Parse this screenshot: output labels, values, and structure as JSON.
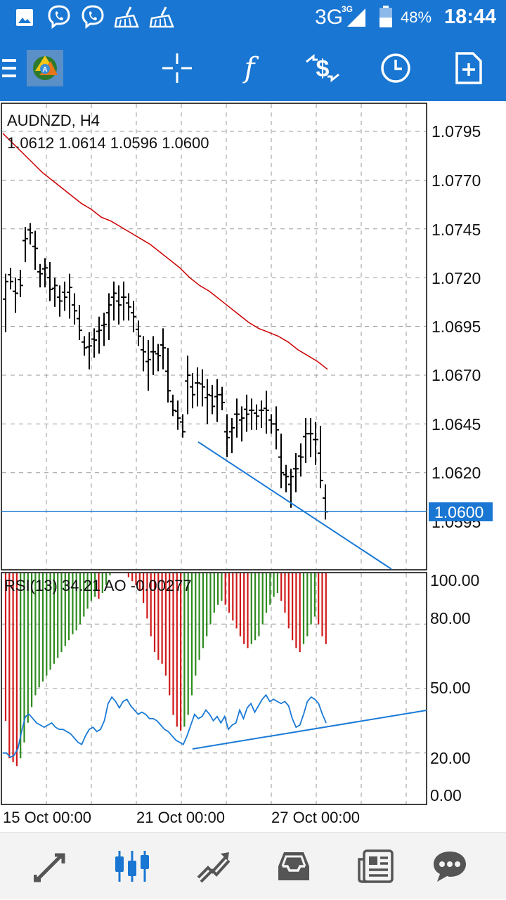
{
  "status_bar": {
    "network": "3G",
    "network_sup": "3G",
    "battery": "48%",
    "time": "18:44",
    "icons": [
      "image-icon",
      "viber-icon",
      "viber-icon",
      "broom-icon",
      "broom-icon",
      "signal-icon",
      "battery-icon"
    ]
  },
  "toolbar": {
    "icons": [
      "menu-icon",
      "metatrader-logo-icon",
      "crosshair-icon",
      "indicator-f-icon",
      "symbol-change-icon",
      "timeframe-clock-icon",
      "new-document-icon"
    ]
  },
  "chart": {
    "symbol_label": "AUDNZD, H4",
    "ohlc": "1.0612 1.0614 1.0596 1.0600",
    "price_axis": [
      "1.0795",
      "1.0770",
      "1.0745",
      "1.0720",
      "1.0695",
      "1.0670",
      "1.0645",
      "1.0620",
      "1.0595"
    ],
    "current_price": "1.0600",
    "indicator_label": "RSI(13) 34.21 AO -0.00277",
    "rsi_axis": [
      "100.00",
      "80.00",
      "50.00",
      "20.00",
      "0.00"
    ],
    "time_axis": [
      "15 Oct 00:00",
      "21 Oct 00:00",
      "27 Oct 00:00"
    ],
    "colors": {
      "toolbar": "#1976d2",
      "candles": "#000000",
      "moving_average": "#cc0000",
      "trendline": "#1a7ad6",
      "ao_up": "#2e8b1e",
      "ao_down": "#d01818",
      "price_tag": "#1976d2"
    }
  },
  "bottom_nav": {
    "icons": [
      "quotes-icon",
      "chart-icon",
      "trade-icon",
      "history-icon",
      "news-icon",
      "chat-icon"
    ],
    "active": "chart-icon"
  },
  "chart_data": {
    "type": "bar",
    "title": "AUDNZD, H4",
    "ylim": [
      1.0576,
      1.081
    ],
    "series": [
      {
        "name": "Price (HLC bars)",
        "values": [
          [
            1.0722,
            1.0692,
            1.0718
          ],
          [
            1.0725,
            1.0714,
            1.0718
          ],
          [
            1.072,
            1.0702,
            1.0712
          ],
          [
            1.0724,
            1.071,
            1.0716
          ],
          [
            1.0746,
            1.0728,
            1.074
          ],
          [
            1.0748,
            1.0737,
            1.0743
          ],
          [
            1.0744,
            1.0724,
            1.0735
          ],
          [
            1.0727,
            1.0715,
            1.0722
          ],
          [
            1.073,
            1.0715,
            1.0725
          ],
          [
            1.0728,
            1.0708,
            1.0714
          ],
          [
            1.072,
            1.0705,
            1.0716
          ],
          [
            1.0716,
            1.07,
            1.0708
          ],
          [
            1.0718,
            1.0703,
            1.071
          ],
          [
            1.0722,
            1.0699,
            1.0715
          ],
          [
            1.0712,
            1.0696,
            1.0703
          ],
          [
            1.0706,
            1.0688,
            1.0693
          ],
          [
            1.069,
            1.068,
            1.0684
          ],
          [
            1.0692,
            1.0673,
            1.0685
          ],
          [
            1.0694,
            1.0679,
            1.0688
          ],
          [
            1.07,
            1.0681,
            1.0693
          ],
          [
            1.0702,
            1.0685,
            1.0696
          ],
          [
            1.0712,
            1.0688,
            1.0706
          ],
          [
            1.0718,
            1.0698,
            1.0712
          ],
          [
            1.0716,
            1.0696,
            1.0706
          ],
          [
            1.0718,
            1.0698,
            1.071
          ],
          [
            1.0712,
            1.0698,
            1.0705
          ],
          [
            1.0708,
            1.0692,
            1.07
          ],
          [
            1.0698,
            1.0685,
            1.069
          ],
          [
            1.069,
            1.0672,
            1.0682
          ],
          [
            1.0688,
            1.0662,
            1.0678
          ],
          [
            1.069,
            1.067,
            1.0682
          ],
          [
            1.0686,
            1.0672,
            1.068
          ],
          [
            1.0694,
            1.0673,
            1.0684
          ],
          [
            1.0684,
            1.0656,
            1.0662
          ],
          [
            1.066,
            1.0649,
            1.0652
          ],
          [
            1.0657,
            1.0642,
            1.0648
          ],
          [
            1.065,
            1.0638,
            1.0641
          ],
          [
            1.068,
            1.065,
            1.067
          ],
          [
            1.0671,
            1.0653,
            1.066
          ],
          [
            1.0674,
            1.0654,
            1.0666
          ],
          [
            1.0673,
            1.0654,
            1.0664
          ],
          [
            1.0668,
            1.0645,
            1.066
          ],
          [
            1.0665,
            1.065,
            1.0654
          ],
          [
            1.0668,
            1.0646,
            1.066
          ],
          [
            1.0664,
            1.0652,
            1.0656
          ],
          [
            1.065,
            1.0628,
            1.0638
          ],
          [
            1.0648,
            1.063,
            1.0643
          ],
          [
            1.0658,
            1.0638,
            1.065
          ],
          [
            1.0654,
            1.0636,
            1.0648
          ],
          [
            1.066,
            1.0641,
            1.065
          ],
          [
            1.0658,
            1.0642,
            1.0652
          ],
          [
            1.0655,
            1.0642,
            1.0649
          ],
          [
            1.0657,
            1.0643,
            1.0652
          ],
          [
            1.0662,
            1.064,
            1.0652
          ],
          [
            1.065,
            1.064,
            1.0645
          ],
          [
            1.0654,
            1.0632,
            1.0642
          ],
          [
            1.064,
            1.0612,
            1.062
          ],
          [
            1.0624,
            1.061,
            1.0618
          ],
          [
            1.0622,
            1.0602,
            1.0618
          ],
          [
            1.063,
            1.061,
            1.0622
          ],
          [
            1.0635,
            1.0618,
            1.0628
          ],
          [
            1.0648,
            1.0625,
            1.064
          ],
          [
            1.0648,
            1.0628,
            1.064
          ],
          [
            1.0646,
            1.0624,
            1.0637
          ],
          [
            1.0644,
            1.0612,
            1.0616
          ],
          [
            1.0614,
            1.0596,
            1.06
          ]
        ]
      },
      {
        "name": "Moving Average",
        "values": [
          1.0794,
          1.0789,
          1.0784,
          1.0779,
          1.0774,
          1.077,
          1.0766,
          1.0762,
          1.0758,
          1.0755,
          1.0751,
          1.0749,
          1.0746,
          1.0743,
          1.074,
          1.0737,
          1.0733,
          1.0729,
          1.0725,
          1.072,
          1.0716,
          1.0713,
          1.0709,
          1.0705,
          1.0701,
          1.0697,
          1.0694,
          1.0692,
          1.069,
          1.0687,
          1.0683,
          1.068,
          1.0677,
          1.0673
        ]
      },
      {
        "name": "RSI(13)",
        "values": [
          20,
          20,
          18,
          19,
          22,
          30,
          37,
          38,
          36,
          34,
          33,
          32,
          33,
          34,
          32,
          31,
          31,
          30,
          29,
          27,
          25,
          24,
          28,
          31,
          32,
          30,
          31,
          35,
          43,
          46,
          44,
          41,
          44,
          45,
          42,
          40,
          38,
          39,
          38,
          36,
          36,
          35,
          33,
          31,
          30,
          28,
          26,
          25,
          24,
          28,
          33,
          38,
          36,
          37,
          40,
          38,
          35,
          37,
          34,
          37,
          31,
          33,
          34,
          40,
          36,
          41,
          43,
          39,
          42,
          45,
          47,
          44,
          45,
          44,
          43,
          44,
          42,
          36,
          32,
          33,
          38,
          44,
          46,
          45,
          43,
          38,
          34
        ],
        "rsi_trendline": [
          [
            24,
            34.2
          ]
        ]
      },
      {
        "name": "AO",
        "values": [
          0.75,
          0.94,
          0.96,
          0.98,
          0.94,
          0.86,
          0.76,
          0.68,
          0.62,
          0.58,
          0.55,
          0.52,
          0.49,
          0.46,
          0.43,
          0.4,
          0.37,
          0.34,
          0.31,
          0.29,
          0.26,
          0.22,
          0.18,
          0.14,
          0.12,
          0.13,
          0.1,
          0.06,
          0.01,
          -0.02,
          -0.04,
          -0.03,
          -0.01,
          0.02,
          0.04,
          0.06,
          0.09,
          0.15,
          0.23,
          0.32,
          0.4,
          0.44,
          0.46,
          0.52,
          0.62,
          0.72,
          0.78,
          0.8,
          0.78,
          0.72,
          0.62,
          0.52,
          0.44,
          0.38,
          0.32,
          0.26,
          0.2,
          0.16,
          0.14,
          0.16,
          0.2,
          0.24,
          0.28,
          0.32,
          0.36,
          0.38,
          0.36,
          0.34,
          0.32,
          0.26,
          0.2,
          0.16,
          0.12,
          0.1,
          0.14,
          0.2,
          0.28,
          0.34,
          0.38,
          0.4,
          0.36,
          0.32,
          0.26,
          0.22,
          0.26,
          0.32,
          0.36
        ],
        "colors_by_rising": true
      }
    ],
    "xlabel": "",
    "ylabel": "",
    "legend": "none"
  }
}
